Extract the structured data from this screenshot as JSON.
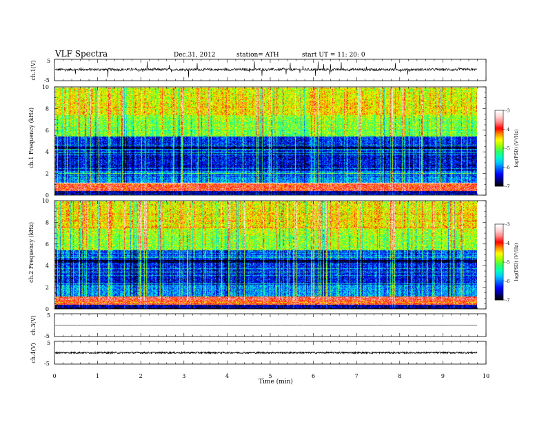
{
  "header": {
    "title": "VLF  Spectra",
    "date": "Dec.31, 2012",
    "station": "station= ATH",
    "start": "start  UT =   11: 20: 0"
  },
  "colors": {
    "colormap": [
      "#000000",
      "#000080",
      "#0000ff",
      "#0060ff",
      "#00c8ff",
      "#00ffc0",
      "#30ff60",
      "#a0ff00",
      "#ffff00",
      "#ff9000",
      "#ff0000",
      "#ff8080",
      "#ffd0d0",
      "#ffffff"
    ],
    "trace": "#000000"
  },
  "chart_data": [
    {
      "id": "ch1_waveform",
      "type": "line",
      "ylabel": "ch.1(V)",
      "ylim": [
        -5,
        5
      ],
      "yticks": [
        "5",
        "-5"
      ],
      "x_range_min": [
        0,
        10
      ],
      "trace_end_min": 9.8,
      "baseline_v": 0.2,
      "noise_v": 0.6,
      "spike_v": 3.5
    },
    {
      "id": "ch1_spectrogram",
      "type": "heatmap",
      "ylabel": "ch.1  Frequency  (kHz)",
      "ylim_khz": [
        0,
        10
      ],
      "yticks": [
        "0",
        "2",
        "4",
        "6",
        "8",
        "10"
      ],
      "colorbar": {
        "label": "log(PSD) (V²/Hz)",
        "range": [
          -7,
          -3
        ],
        "ticks": [
          "-3",
          "-4",
          "-5",
          "-6",
          "-7"
        ]
      }
    },
    {
      "id": "ch2_spectrogram",
      "type": "heatmap",
      "ylabel": "ch.2  Frequency  (kHz)",
      "ylim_khz": [
        0,
        10
      ],
      "yticks": [
        "0",
        "2",
        "4",
        "6",
        "8",
        "10"
      ],
      "colorbar": {
        "label": "log(PSD) (V²/Hz)",
        "range": [
          -7,
          -3
        ],
        "ticks": [
          "-3",
          "-4",
          "-5",
          "-6",
          "-7"
        ]
      }
    },
    {
      "id": "ch3_waveform",
      "type": "line",
      "ylabel": "ch.3(V)",
      "ylim": [
        -5,
        5
      ],
      "yticks": [
        "5",
        "-5"
      ],
      "trace_end_min": 9.8,
      "baseline_v": 0,
      "noise_v": 0.05,
      "spike_v": 0
    },
    {
      "id": "ch4_waveform",
      "type": "line",
      "ylabel": "ch.4(V)",
      "ylim": [
        -5,
        5
      ],
      "yticks": [
        "5",
        "-5"
      ],
      "trace_end_min": 9.8,
      "baseline_v": 0,
      "noise_v": 0.35,
      "spike_v": 0
    }
  ],
  "x_axis": {
    "label": "Time  (min)",
    "ticks": [
      "0",
      "1",
      "2",
      "3",
      "4",
      "5",
      "6",
      "7",
      "8",
      "9",
      "10"
    ]
  }
}
